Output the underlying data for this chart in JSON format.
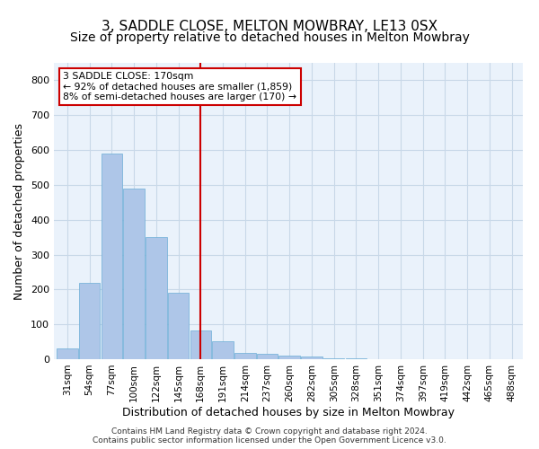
{
  "title": "3, SADDLE CLOSE, MELTON MOWBRAY, LE13 0SX",
  "subtitle": "Size of property relative to detached houses in Melton Mowbray",
  "xlabel": "Distribution of detached houses by size in Melton Mowbray",
  "ylabel": "Number of detached properties",
  "bin_labels": [
    "31sqm",
    "54sqm",
    "77sqm",
    "100sqm",
    "122sqm",
    "145sqm",
    "168sqm",
    "191sqm",
    "214sqm",
    "237sqm",
    "260sqm",
    "282sqm",
    "305sqm",
    "328sqm",
    "351sqm",
    "374sqm",
    "397sqm",
    "419sqm",
    "442sqm",
    "465sqm",
    "488sqm"
  ],
  "bar_values": [
    30,
    220,
    590,
    490,
    350,
    190,
    83,
    52,
    19,
    15,
    10,
    8,
    3,
    2,
    1,
    1,
    0,
    0,
    0,
    0,
    0
  ],
  "bar_color": "#aec6e8",
  "bar_edge_color": "#6baed6",
  "grid_color": "#c8d8e8",
  "bg_color": "#eaf2fb",
  "vline_color": "#cc0000",
  "vline_idx": 6,
  "annotation_line1": "3 SADDLE CLOSE: 170sqm",
  "annotation_line2": "← 92% of detached houses are smaller (1,859)",
  "annotation_line3": "8% of semi-detached houses are larger (170) →",
  "annotation_box_color": "#ffffff",
  "annotation_box_edge": "#cc0000",
  "ylim": [
    0,
    850
  ],
  "yticks": [
    0,
    100,
    200,
    300,
    400,
    500,
    600,
    700,
    800
  ],
  "footer": "Contains HM Land Registry data © Crown copyright and database right 2024.\nContains public sector information licensed under the Open Government Licence v3.0.",
  "title_fontsize": 11,
  "subtitle_fontsize": 10,
  "axis_fontsize": 9,
  "tick_fontsize": 8
}
